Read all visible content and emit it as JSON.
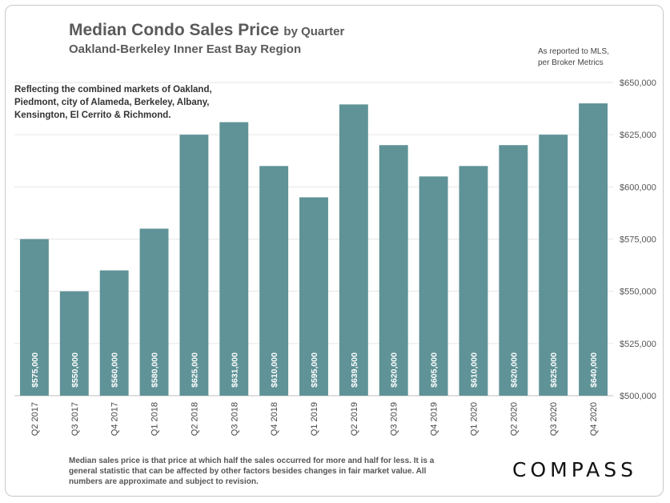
{
  "header": {
    "title": "Median Condo Sales Price",
    "title_suffix": "by Quarter",
    "subtitle": "Oakland-Berkeley  Inner East Bay Region",
    "source_line1": "As reported to MLS,",
    "source_line2": "per Broker Metrics"
  },
  "note": "Reflecting the combined markets of Oakland, Piedmont, city of Alameda, Berkeley, Albany, Kensington, El Cerrito & Richmond.",
  "footnote": "Median sales price is that price at which half the sales occurred for more and half for less. It is a general statistic that can be affected by other factors besides changes in fair market value. All numbers are approximate and subject to revision.",
  "brand": "COMPASS",
  "colors": {
    "bar": "#5f9397",
    "title": "#5a5a5a"
  },
  "chart_data": {
    "type": "bar",
    "categories": [
      "Q2 2017",
      "Q3 2017",
      "Q4 2017",
      "Q1 2018",
      "Q2 2018",
      "Q3 2018",
      "Q4 2018",
      "Q1 2019",
      "Q2 2019",
      "Q3 2019",
      "Q4 2019",
      "Q1 2020",
      "Q2 2020",
      "Q3 2020",
      "Q4 2020"
    ],
    "values": [
      575000,
      550000,
      560000,
      580000,
      625000,
      631000,
      610000,
      595000,
      639500,
      620000,
      605000,
      610000,
      620000,
      625000,
      640000
    ],
    "value_labels": [
      "$575,000",
      "$550,000",
      "$560,000",
      "$580,000",
      "$625,000",
      "$631,000",
      "$610,000",
      "$595,000",
      "$639,500",
      "$620,000",
      "$605,000",
      "$610,000",
      "$620,000",
      "$625,000",
      "$640,000"
    ],
    "ylim": [
      500000,
      650000
    ],
    "yticks": [
      500000,
      525000,
      550000,
      575000,
      600000,
      625000,
      650000
    ],
    "ytick_labels": [
      "$500,000",
      "$525,000",
      "$550,000",
      "$575,000",
      "$600,000",
      "$625,000",
      "$650,000"
    ],
    "y_axis_side": "right",
    "grid": true
  }
}
